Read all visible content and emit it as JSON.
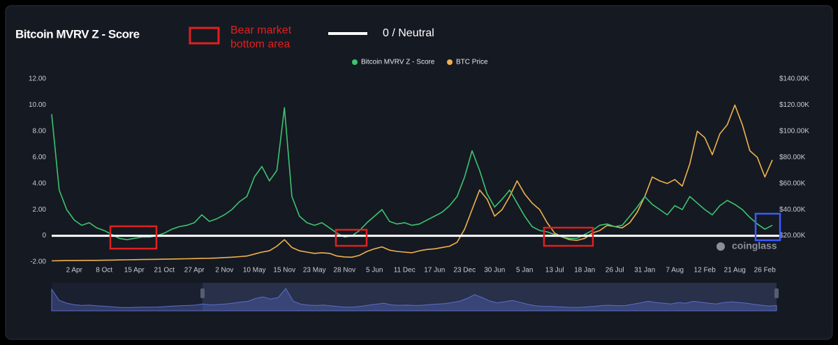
{
  "chart_data": {
    "type": "line",
    "title": "Bitcoin MVRV Z - Score",
    "annotations": [
      "Bear market bottom area",
      "0 / Neutral"
    ],
    "watermark": "coinglass",
    "grid": false,
    "legend": "top",
    "categories": [
      null,
      null,
      null,
      "2 Apr",
      null,
      null,
      null,
      "8 Oct",
      null,
      null,
      null,
      "15 Apr",
      null,
      null,
      null,
      "21 Oct",
      null,
      null,
      null,
      "27 Apr",
      null,
      null,
      null,
      "2 Nov",
      null,
      null,
      null,
      "10 May",
      null,
      null,
      null,
      "15 Nov",
      null,
      null,
      null,
      "23 May",
      null,
      null,
      null,
      "28 Nov",
      null,
      null,
      null,
      "5 Jun",
      null,
      null,
      null,
      "11 Dec",
      null,
      null,
      null,
      "17 Jun",
      null,
      null,
      null,
      "23 Dec",
      null,
      null,
      null,
      "30 Jun",
      null,
      null,
      null,
      "5 Jan",
      null,
      null,
      null,
      "13 Jul",
      null,
      null,
      null,
      "18 Jan",
      null,
      null,
      null,
      "26 Jul",
      null,
      null,
      null,
      "31 Jan",
      null,
      null,
      null,
      "7 Aug",
      null,
      null,
      null,
      "12 Feb",
      null,
      null,
      null,
      "21 Aug",
      null,
      null,
      null,
      "26 Feb",
      null
    ],
    "series": [
      {
        "name": "Bitcoin MVRV Z - Score",
        "color": "#3cc46e",
        "values": [
          9.3,
          3.5,
          2.0,
          1.2,
          0.8,
          1.0,
          0.6,
          0.4,
          0.1,
          -0.2,
          -0.3,
          -0.2,
          -0.1,
          -0.1,
          0.0,
          0.2,
          0.5,
          0.7,
          0.8,
          1.0,
          1.6,
          1.1,
          1.3,
          1.6,
          2.0,
          2.6,
          3.0,
          4.5,
          5.3,
          4.2,
          5.0,
          9.8,
          3.0,
          1.5,
          1.0,
          0.8,
          1.0,
          0.6,
          0.2,
          -0.1,
          0.0,
          0.4,
          1.0,
          1.5,
          2.0,
          1.1,
          0.9,
          1.0,
          0.8,
          0.9,
          1.2,
          1.5,
          1.8,
          2.3,
          3.0,
          4.5,
          6.5,
          5.0,
          3.2,
          2.2,
          2.8,
          3.5,
          2.5,
          1.5,
          0.7,
          0.4,
          0.3,
          0.1,
          -0.1,
          -0.2,
          -0.2,
          0.1,
          0.4,
          0.8,
          0.9,
          0.7,
          0.8,
          1.5,
          2.2,
          3.0,
          2.4,
          2.0,
          1.6,
          2.3,
          2.0,
          3.0,
          2.5,
          2.0,
          1.6,
          2.3,
          2.7,
          2.4,
          2.0,
          1.4,
          0.9,
          0.5,
          0.8
        ]
      },
      {
        "name": "BTC Price",
        "color": "#f0b24d",
        "axis": "y2",
        "values": [
          800,
          900,
          1000,
          1000,
          1100,
          1200,
          1200,
          1300,
          1400,
          1500,
          1600,
          1700,
          1800,
          1900,
          2000,
          2100,
          2200,
          2300,
          2400,
          2500,
          2700,
          2800,
          3000,
          3300,
          3600,
          4000,
          4500,
          6000,
          7500,
          8500,
          12000,
          17000,
          11000,
          8500,
          7500,
          6500,
          7000,
          6500,
          4500,
          3800,
          3600,
          5000,
          8000,
          10000,
          11500,
          9000,
          8000,
          7500,
          7000,
          8500,
          9500,
          10000,
          11000,
          12000,
          15000,
          25000,
          40000,
          55000,
          48000,
          35000,
          40000,
          50000,
          62000,
          52000,
          45000,
          40000,
          30000,
          22000,
          19000,
          17000,
          16500,
          18000,
          22000,
          24000,
          28000,
          27000,
          26000,
          30000,
          38000,
          50000,
          65000,
          62000,
          60000,
          63000,
          58000,
          75000,
          100000,
          95000,
          82000,
          98000,
          105000,
          120000,
          105000,
          85000,
          80000,
          65000,
          78000
        ]
      }
    ],
    "ylim": [
      -2,
      12
    ],
    "yticks": [
      {
        "value": -2,
        "label": "-2.00"
      },
      0,
      {
        "value": 2,
        "label": "2.00"
      },
      {
        "value": 4,
        "label": "4.00"
      },
      {
        "value": 6,
        "label": "6.00"
      },
      {
        "value": 8,
        "label": "8.00"
      },
      {
        "value": 10,
        "label": "10.00"
      },
      {
        "value": 12,
        "label": "12.00"
      }
    ],
    "y2lim": [
      0,
      140000
    ],
    "y2ticks": [
      {
        "value": 20000,
        "label": "$20.00K"
      },
      {
        "value": 40000,
        "label": "$40.00K"
      },
      {
        "value": 60000,
        "label": "$60.00K"
      },
      {
        "value": 80000,
        "label": "$80.00K"
      },
      {
        "value": 100000,
        "label": "$100.00K"
      },
      {
        "value": 120000,
        "label": "$120.00K"
      },
      {
        "value": 140000,
        "label": "$140.00K"
      }
    ]
  }
}
